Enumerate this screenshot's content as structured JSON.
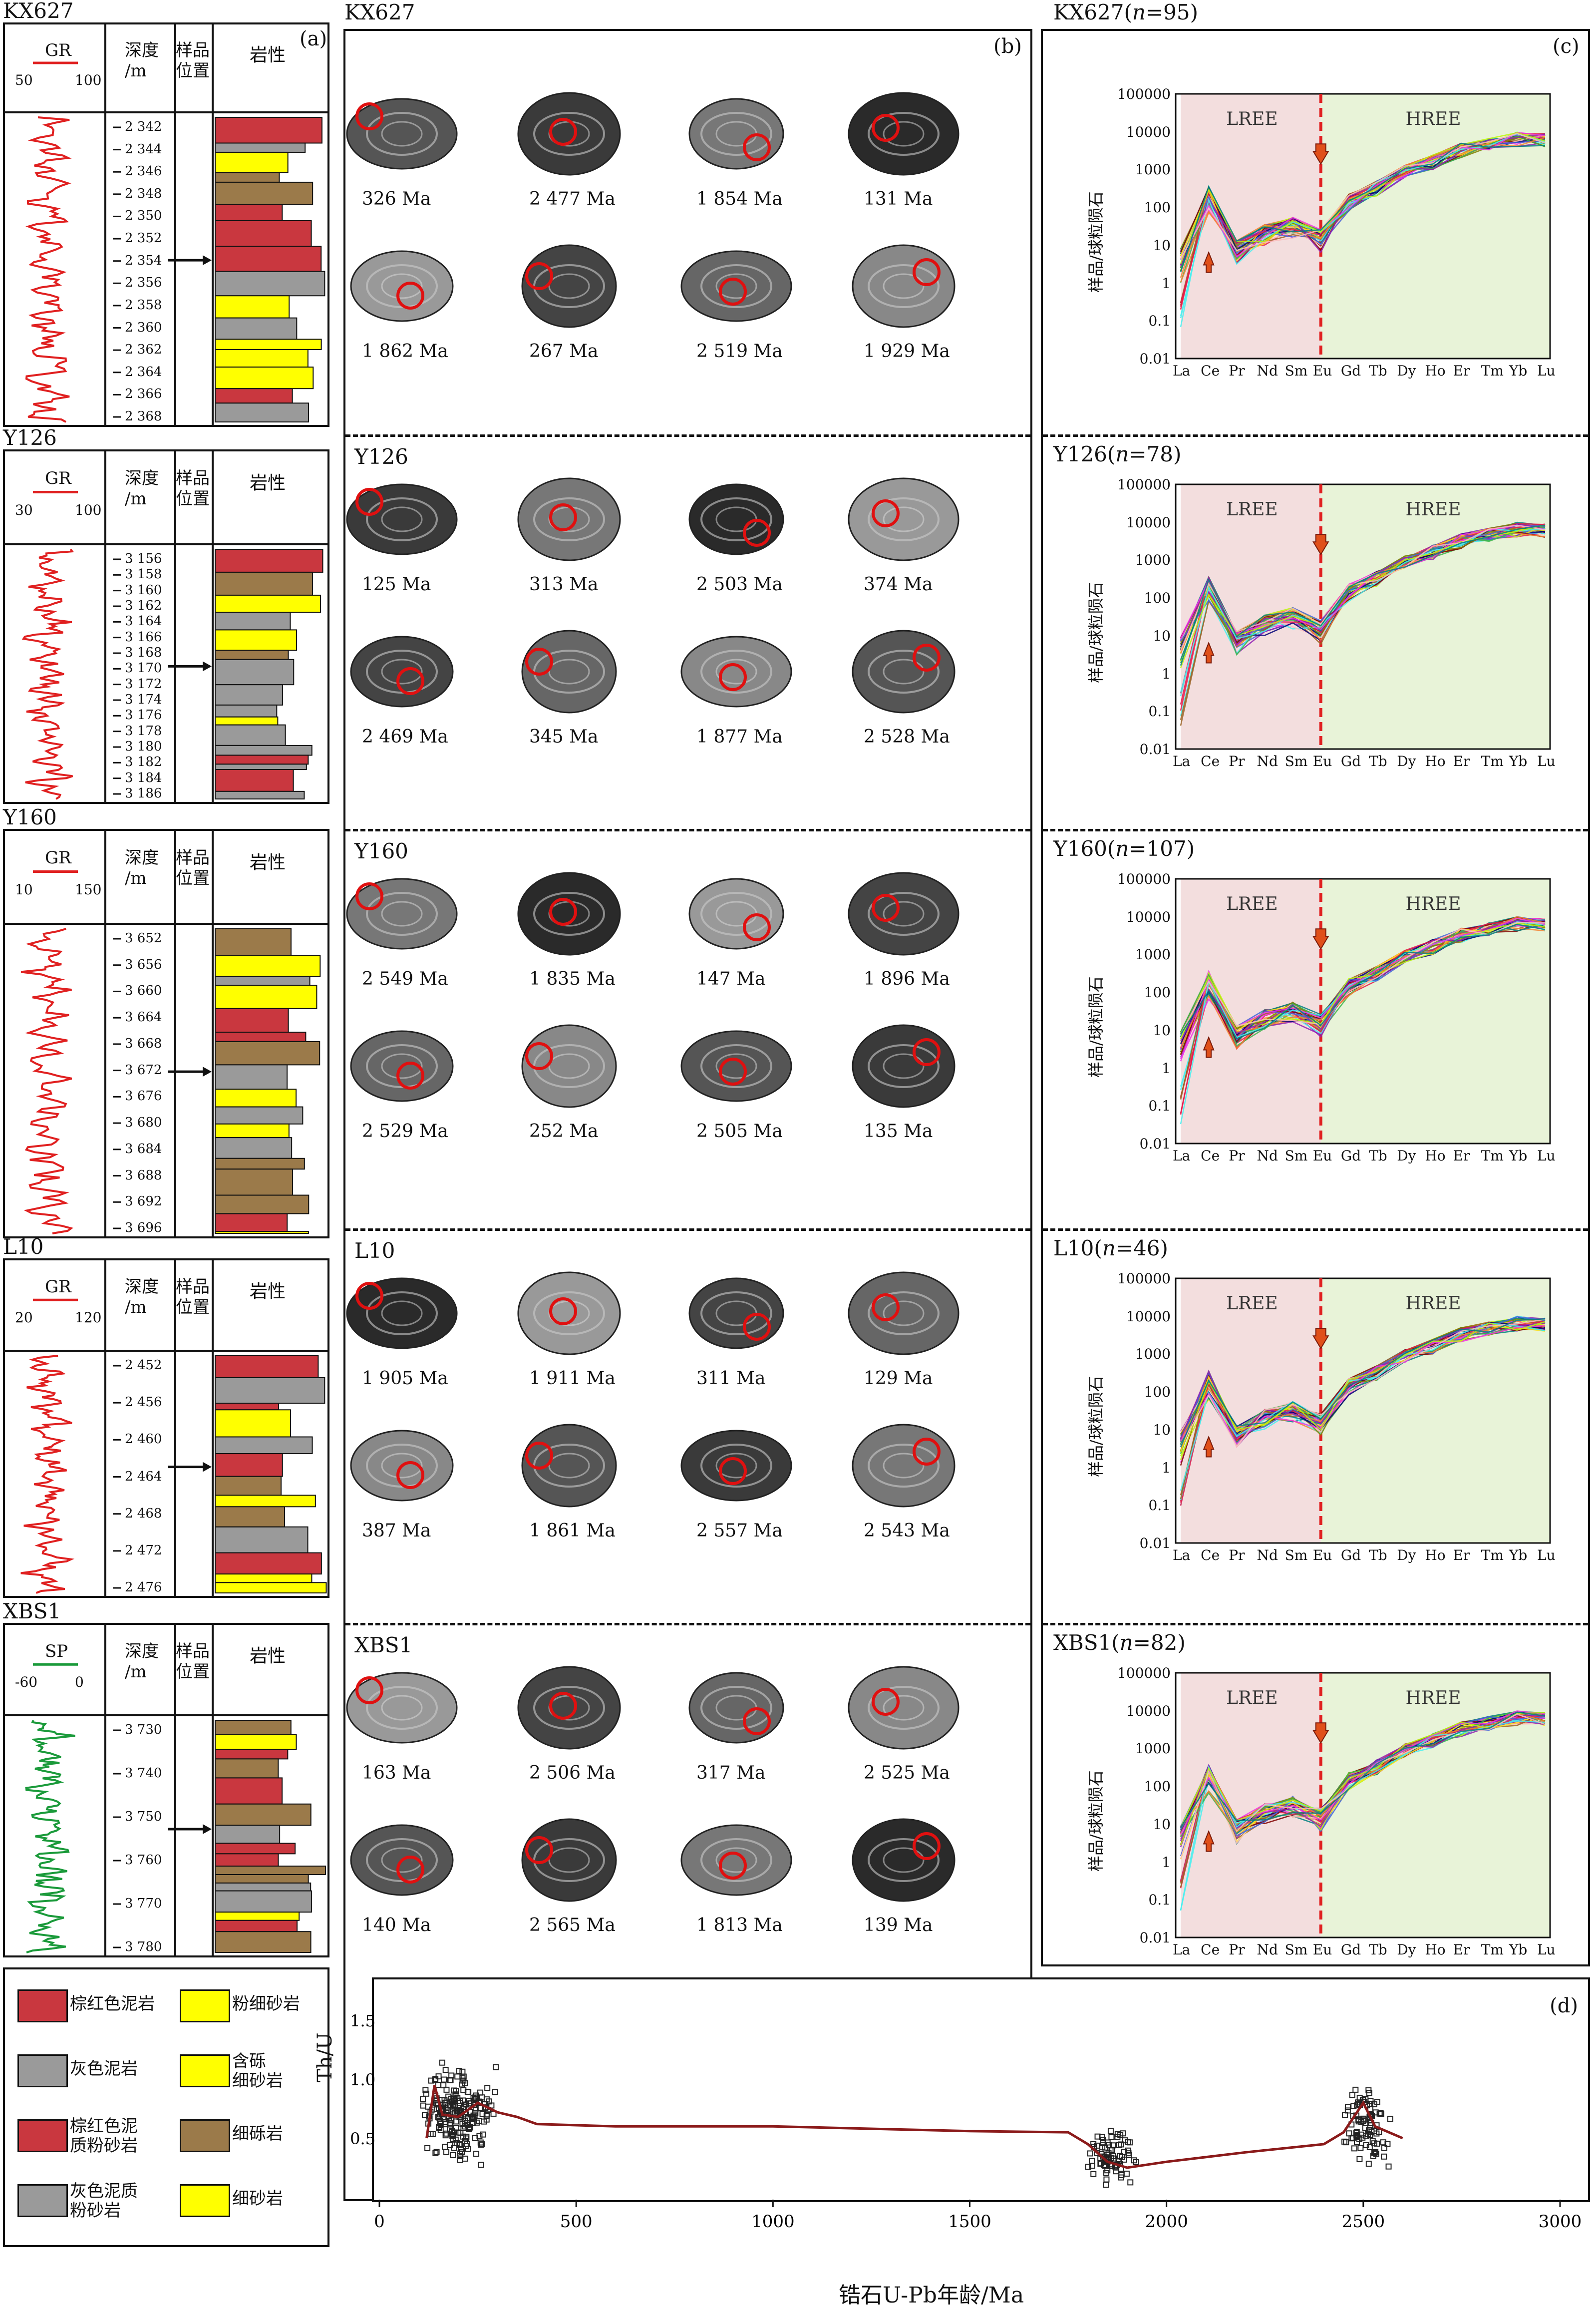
{
  "panel_labels": {
    "a": "(a)",
    "b": "(b)",
    "c": "(c)",
    "d": "(d)"
  },
  "wells": [
    {
      "name": "KX627",
      "curve": "GR",
      "min": "50",
      "max": "100",
      "depths": [
        "2 342",
        "2 344",
        "2 346",
        "2 348",
        "2 350",
        "2 352",
        "2 354",
        "2 356",
        "2 358",
        "2 360",
        "2 362",
        "2 364",
        "2 366",
        "2 368"
      ]
    },
    {
      "name": "Y126",
      "curve": "GR",
      "min": "30",
      "max": "100",
      "depths": [
        "3 156",
        "3 158",
        "3 160",
        "3 162",
        "3 164",
        "3 166",
        "3 168",
        "3 170",
        "3 172",
        "3 174",
        "3 176",
        "3 178",
        "3 180",
        "3 182",
        "3 184",
        "3 186"
      ]
    },
    {
      "name": "Y160",
      "curve": "GR",
      "min": "10",
      "max": "150",
      "depths": [
        "3 652",
        "3 656",
        "3 660",
        "3 664",
        "3 668",
        "3 672",
        "3 676",
        "3 680",
        "3 684",
        "3 688",
        "3 692",
        "3 696"
      ]
    },
    {
      "name": "L10",
      "curve": "GR",
      "min": "20",
      "max": "120",
      "depths": [
        "2 452",
        "2 456",
        "2 460",
        "2 464",
        "2 468",
        "2 472",
        "2 476"
      ]
    },
    {
      "name": "XBS1",
      "curve": "SP",
      "min": "-60",
      "max": "0",
      "depths": [
        "3 730",
        "3 740",
        "3 750",
        "3 760",
        "3 770",
        "3 780"
      ]
    }
  ],
  "col_headers": {
    "depth": "深度\n/m",
    "sample": "样品\n位置",
    "lith": "岩性"
  },
  "legend": [
    {
      "label": "棕红色泥岩",
      "color": "#c9373f",
      "pattern": "dash"
    },
    {
      "label": "粉细砂岩",
      "color": "#ffff00",
      "pattern": "dots"
    },
    {
      "label": "灰色泥岩",
      "color": "#9a9a9a",
      "pattern": "dash"
    },
    {
      "label": "含砾\n细砂岩",
      "color": "#ffff00",
      "pattern": "circles"
    },
    {
      "label": "棕红色泥\n质粉砂岩",
      "color": "#c9373f",
      "pattern": "dashdot"
    },
    {
      "label": "细砾岩",
      "color": "#9b7a4a",
      "pattern": "circles"
    },
    {
      "label": "灰色泥质\n粉砂岩",
      "color": "#9a9a9a",
      "pattern": "dashdot"
    },
    {
      "label": "细砂岩",
      "color": "#ffff00",
      "pattern": "dots"
    }
  ],
  "zircon_panels": [
    {
      "title": "KX627",
      "ages": [
        "326 Ma",
        "2 477 Ma",
        "1 854 Ma",
        "131 Ma",
        "1 862 Ma",
        "267 Ma",
        "2 519 Ma",
        "1 929 Ma"
      ]
    },
    {
      "title": "Y126",
      "ages": [
        "125 Ma",
        "313 Ma",
        "2 503 Ma",
        "374 Ma",
        "2 469 Ma",
        "345 Ma",
        "1 877 Ma",
        "2 528 Ma"
      ]
    },
    {
      "title": "Y160",
      "ages": [
        "2 549 Ma",
        "1 835 Ma",
        "147 Ma",
        "1 896 Ma",
        "2 529 Ma",
        "252 Ma",
        "2 505 Ma",
        "135 Ma"
      ]
    },
    {
      "title": "L10",
      "ages": [
        "1 905 Ma",
        "1 911 Ma",
        "311 Ma",
        "129 Ma",
        "387 Ma",
        "1 861 Ma",
        "2 557 Ma",
        "2 543 Ma"
      ]
    },
    {
      "title": "XBS1",
      "ages": [
        "163 Ma",
        "2 506 Ma",
        "317 Ma",
        "2 525 Ma",
        "140 Ma",
        "2 565 Ma",
        "1 813 Ma",
        "139 Ma"
      ]
    }
  ],
  "ree_panels": [
    {
      "title": "KX627",
      "n": "95"
    },
    {
      "title": "Y126",
      "n": "78"
    },
    {
      "title": "Y160",
      "n": "107"
    },
    {
      "title": "L10",
      "n": "46"
    },
    {
      "title": "XBS1",
      "n": "82"
    }
  ],
  "ree_common": {
    "elements": [
      "La",
      "Ce",
      "Pr",
      "Nd",
      "Sm",
      "Eu",
      "Gd",
      "Tb",
      "Dy",
      "Ho",
      "Er",
      "Tm",
      "Yb",
      "Lu"
    ],
    "yticks": [
      "100000",
      "10000",
      "1000",
      "100",
      "10",
      "1",
      "0.1",
      "0.01"
    ],
    "ylabel": "样品/球粒陨石",
    "lree": "LREE",
    "hree": "HREE"
  },
  "chart_data": {
    "type": "scatter",
    "title": "",
    "xlabel": "锆石U-Pb年龄/Ma",
    "ylabel": "Th/U",
    "xlim": [
      0,
      3000
    ],
    "ylim": [
      0,
      1.8
    ],
    "xticks": [
      "0",
      "500",
      "1000",
      "1500",
      "2000",
      "2500",
      "3000"
    ],
    "yticks": [
      "0.5",
      "1.0",
      "1.5"
    ],
    "trend": [
      [
        120,
        0.5
      ],
      [
        140,
        0.95
      ],
      [
        160,
        0.7
      ],
      [
        200,
        0.68
      ],
      [
        250,
        0.8
      ],
      [
        300,
        0.72
      ],
      [
        350,
        0.68
      ],
      [
        400,
        0.62
      ],
      [
        600,
        0.6
      ],
      [
        1000,
        0.6
      ],
      [
        1500,
        0.56
      ],
      [
        1750,
        0.55
      ],
      [
        1800,
        0.45
      ],
      [
        1850,
        0.3
      ],
      [
        1900,
        0.25
      ],
      [
        2000,
        0.3
      ],
      [
        2200,
        0.38
      ],
      [
        2400,
        0.45
      ],
      [
        2450,
        0.55
      ],
      [
        2500,
        0.8
      ],
      [
        2530,
        0.6
      ],
      [
        2600,
        0.5
      ]
    ],
    "clusters": [
      {
        "x_center": 200,
        "x_spread": 100,
        "y_center": 0.7,
        "y_spread": 0.45,
        "count": 210
      },
      {
        "x_center": 1860,
        "x_spread": 70,
        "y_center": 0.35,
        "y_spread": 0.25,
        "count": 80
      },
      {
        "x_center": 2510,
        "x_spread": 70,
        "y_center": 0.6,
        "y_spread": 0.35,
        "count": 90
      }
    ]
  }
}
